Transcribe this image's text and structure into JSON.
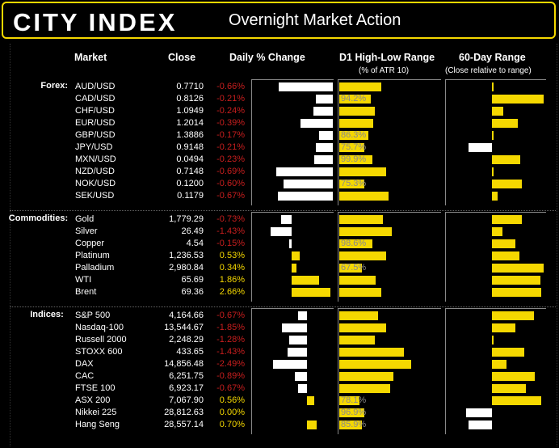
{
  "header": {
    "logo": "CITY INDEX",
    "title": "Overnight Market Action"
  },
  "columns": {
    "market": "Market",
    "close": "Close",
    "daily_change": "Daily % Change",
    "d1_range": "D1 High-Low Range",
    "d1_range_sub": "(% of ATR 10)",
    "sixty_day": "60-Day Range",
    "sixty_day_sub": "(Close relative to range)"
  },
  "chart_data": {
    "type": "table",
    "sections": [
      {
        "label": "Forex:",
        "rows": [
          {
            "name": "AUD/USD",
            "close": "0.7710",
            "change": "-0.66%",
            "change_val": -0.66,
            "range": "124.9%",
            "range_val": 124.9,
            "range_ok": true,
            "sixty": 0.02
          },
          {
            "name": "CAD/USD",
            "close": "0.8126",
            "change": "-0.21%",
            "change_val": -0.21,
            "range": "94.2%",
            "range_val": 94.2,
            "range_ok": false,
            "sixty": 1.0
          },
          {
            "name": "CHF/USD",
            "close": "1.0949",
            "change": "-0.24%",
            "change_val": -0.24,
            "range": "107.7%",
            "range_val": 107.7,
            "range_ok": true,
            "sixty": 0.22
          },
          {
            "name": "EUR/USD",
            "close": "1.2014",
            "change": "-0.39%",
            "change_val": -0.39,
            "range": "101.9%",
            "range_val": 101.9,
            "range_ok": true,
            "sixty": 0.5
          },
          {
            "name": "GBP/USD",
            "close": "1.3886",
            "change": "-0.17%",
            "change_val": -0.17,
            "range": "86.3%",
            "range_val": 86.3,
            "range_ok": false,
            "sixty": 0.0
          },
          {
            "name": "JPY/USD",
            "close": "0.9148",
            "change": "-0.21%",
            "change_val": -0.21,
            "range": "75.7%",
            "range_val": 75.7,
            "range_ok": false,
            "sixty": -0.45
          },
          {
            "name": "MXN/USD",
            "close": "0.0494",
            "change": "-0.23%",
            "change_val": -0.23,
            "range": "99.9%",
            "range_val": 99.9,
            "range_ok": false,
            "sixty": 0.55
          },
          {
            "name": "NZD/USD",
            "close": "0.7148",
            "change": "-0.69%",
            "change_val": -0.69,
            "range": "139.4%",
            "range_val": 139.4,
            "range_ok": true,
            "sixty": 0.03
          },
          {
            "name": "NOK/USD",
            "close": "0.1200",
            "change": "-0.60%",
            "change_val": -0.6,
            "range": "75.3%",
            "range_val": 75.3,
            "range_ok": false,
            "sixty": 0.58
          },
          {
            "name": "SEK/USD",
            "close": "0.1179",
            "change": "-0.67%",
            "change_val": -0.67,
            "range": "147.9%",
            "range_val": 147.9,
            "range_ok": true,
            "sixty": 0.11
          }
        ]
      },
      {
        "label": "Commodities:",
        "rows": [
          {
            "name": "Gold",
            "close": "1,779.29",
            "change": "-0.73%",
            "change_val": -0.73,
            "range": "130.4%",
            "range_val": 130.4,
            "range_ok": true,
            "sixty": 0.58
          },
          {
            "name": "Silver",
            "close": "26.49",
            "change": "-1.43%",
            "change_val": -1.43,
            "range": "156.5%",
            "range_val": 156.5,
            "range_ok": true,
            "sixty": 0.2
          },
          {
            "name": "Copper",
            "close": "4.54",
            "change": "-0.15%",
            "change_val": -0.15,
            "range": "98.6%",
            "range_val": 98.6,
            "range_ok": false,
            "sixty": 0.46
          },
          {
            "name": "Platinum",
            "close": "1,236.53",
            "change": "0.53%",
            "change_val": 0.53,
            "range": "140.4%",
            "range_val": 140.4,
            "range_ok": true,
            "sixty": 0.53
          },
          {
            "name": "Palladium",
            "close": "2,980.84",
            "change": "0.34%",
            "change_val": 0.34,
            "range": "67.5%",
            "range_val": 67.5,
            "range_ok": false,
            "sixty": 1.0
          },
          {
            "name": "WTI",
            "close": "65.69",
            "change": "1.86%",
            "change_val": 1.86,
            "range": "107.9%",
            "range_val": 107.9,
            "range_ok": true,
            "sixty": 0.93
          },
          {
            "name": "Brent",
            "close": "69.36",
            "change": "2.66%",
            "change_val": 2.66,
            "range": "126.8%",
            "range_val": 126.8,
            "range_ok": true,
            "sixty": 0.95
          }
        ]
      },
      {
        "label": "Indices:",
        "rows": [
          {
            "name": "S&P 500",
            "close": "4,164.66",
            "change": "-0.67%",
            "change_val": -0.67,
            "range": "149.5%",
            "range_val": 149.5,
            "range_ok": true,
            "sixty": 0.82
          },
          {
            "name": "Nasdaq-100",
            "close": "13,544.67",
            "change": "-1.85%",
            "change_val": -1.85,
            "range": "179.1%",
            "range_val": 179.1,
            "range_ok": true,
            "sixty": 0.45
          },
          {
            "name": "Russell 2000",
            "close": "2,248.29",
            "change": "-1.28%",
            "change_val": -1.28,
            "range": "136.3%",
            "range_val": 136.3,
            "range_ok": true,
            "sixty": 0.03
          },
          {
            "name": "STOXX 600",
            "close": "433.65",
            "change": "-1.43%",
            "change_val": -1.43,
            "range": "250.4%",
            "range_val": 250.4,
            "range_ok": true,
            "sixty": 0.62
          },
          {
            "name": "DAX",
            "close": "14,856.48",
            "change": "-2.49%",
            "change_val": -2.49,
            "range": "277.0%",
            "range_val": 277.0,
            "range_ok": true,
            "sixty": 0.28
          },
          {
            "name": "CAC",
            "close": "6,251.75",
            "change": "-0.89%",
            "change_val": -0.89,
            "range": "208.5%",
            "range_val": 208.5,
            "range_ok": true,
            "sixty": 0.83
          },
          {
            "name": "FTSE 100",
            "close": "6,923.17",
            "change": "-0.67%",
            "change_val": -0.67,
            "range": "195.6%",
            "range_val": 195.6,
            "range_ok": true,
            "sixty": 0.65
          },
          {
            "name": "ASX 200",
            "close": "7,067.90",
            "change": "0.56%",
            "change_val": 0.56,
            "range": "78.1%",
            "range_val": 78.1,
            "range_ok": false,
            "sixty": 0.95
          },
          {
            "name": "Nikkei 225",
            "close": "28,812.63",
            "change": "0.00%",
            "change_val": 0.0,
            "range": "96.9%",
            "range_val": 96.9,
            "range_ok": false,
            "sixty": -0.5
          },
          {
            "name": "Hang Seng",
            "close": "28,557.14",
            "change": "0.70%",
            "change_val": 0.7,
            "range": "85.9%",
            "range_val": 85.9,
            "range_ok": false,
            "sixty": -0.45
          }
        ]
      }
    ],
    "colors": {
      "positive": "#f5d800",
      "negative": "#c81e1e",
      "neg_bar": "#ffffff",
      "pos_bar": "#f5d800",
      "range_bar": "#f5d800",
      "muted_text": "#8a8a8a",
      "accent": "#f5d800"
    }
  }
}
